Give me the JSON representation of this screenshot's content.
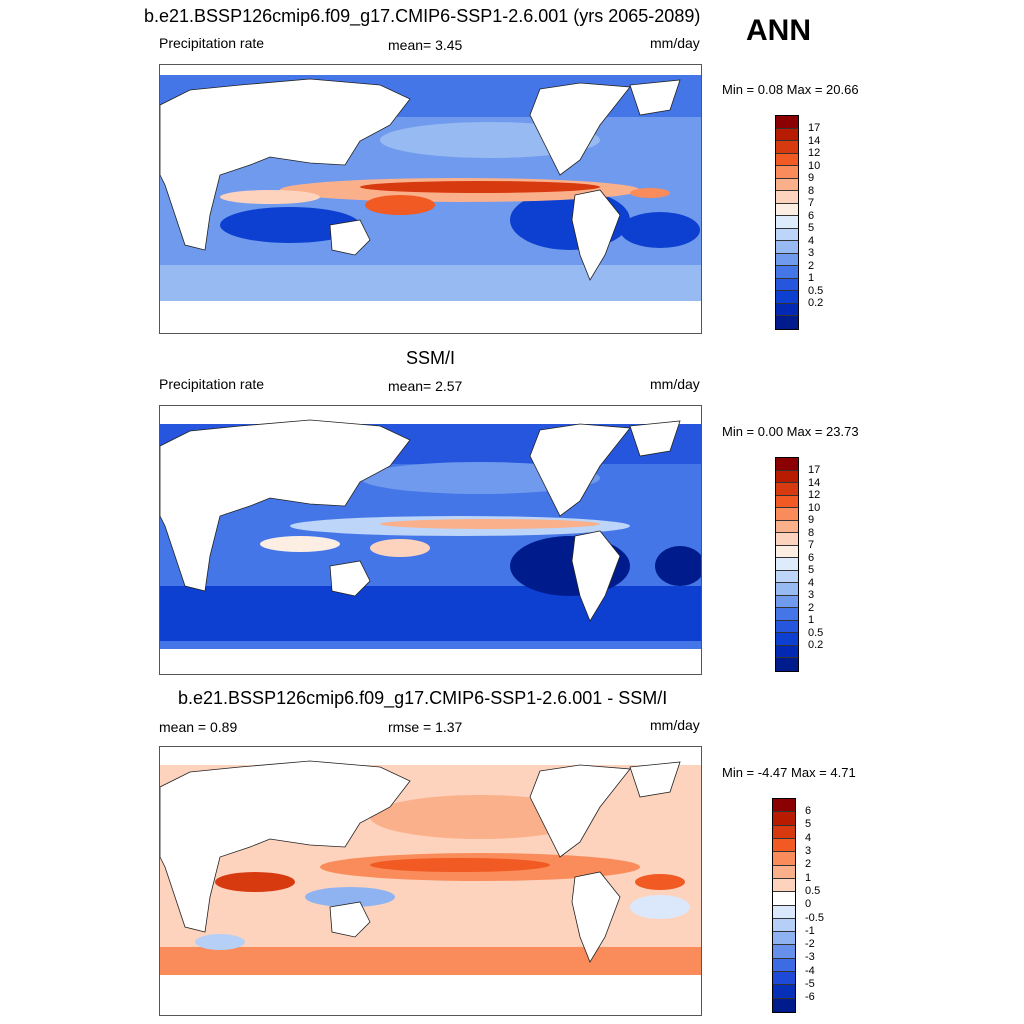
{
  "season": "ANN",
  "panels": [
    {
      "title": "b.e21.BSSP126cmip6.f09_g17.CMIP6-SSP1-2.6.001 (yrs 2065-2089)",
      "left_label": "Precipitation rate",
      "center_label": "mean=   3.45",
      "units": "mm/day",
      "minmax": "Min =   0.08 Max =  20.66",
      "colorbar": {
        "colors": [
          "#8b0000",
          "#b81c00",
          "#d83a10",
          "#f15a22",
          "#f98c5a",
          "#fbb08c",
          "#fdd3be",
          "#fdeee4",
          "#ddebfb",
          "#bcd5f8",
          "#97baf2",
          "#6f9aed",
          "#4576e8",
          "#2656dd",
          "#0d3fd0",
          "#0329b4",
          "#001b8c"
        ],
        "ticks": [
          "17",
          "14",
          "12",
          "10",
          "9",
          "8",
          "7",
          "6",
          "5",
          "4",
          "3",
          "2",
          "1",
          "0.5",
          "0.2"
        ]
      }
    },
    {
      "title": "SSM/I",
      "left_label": "Precipitation rate",
      "center_label": "mean=   2.57",
      "units": "mm/day",
      "minmax": "Min =   0.00 Max =  23.73",
      "colorbar": {
        "colors": [
          "#8b0000",
          "#b81c00",
          "#d83a10",
          "#f15a22",
          "#f98c5a",
          "#fbb08c",
          "#fdd3be",
          "#fdeee4",
          "#ddebfb",
          "#bcd5f8",
          "#97baf2",
          "#6f9aed",
          "#4576e8",
          "#2656dd",
          "#0d3fd0",
          "#0329b4",
          "#001b8c"
        ],
        "ticks": [
          "17",
          "14",
          "12",
          "10",
          "9",
          "8",
          "7",
          "6",
          "5",
          "4",
          "3",
          "2",
          "1",
          "0.5",
          "0.2"
        ]
      }
    },
    {
      "title": "b.e21.BSSP126cmip6.f09_g17.CMIP6-SSP1-2.6.001 - SSM/I",
      "left_label": "mean =   0.89",
      "center_label": "rmse =   1.37",
      "units": "mm/day",
      "minmax": "Min =  -4.47 Max =   4.71",
      "colorbar": {
        "colors": [
          "#8b0000",
          "#b81c00",
          "#d83a10",
          "#f15a22",
          "#f98c5a",
          "#fbb08c",
          "#fdd3be",
          "#ffffff",
          "#dbe8fb",
          "#b6cff6",
          "#8fb3f0",
          "#6690ea",
          "#3d6be3",
          "#1d4bd8",
          "#0630b8",
          "#001b8c"
        ],
        "ticks": [
          "6",
          "5",
          "4",
          "3",
          "2",
          "1",
          "0.5",
          "0",
          "-0.5",
          "-1",
          "-2",
          "-3",
          "-4",
          "-5",
          "-6"
        ]
      }
    }
  ]
}
